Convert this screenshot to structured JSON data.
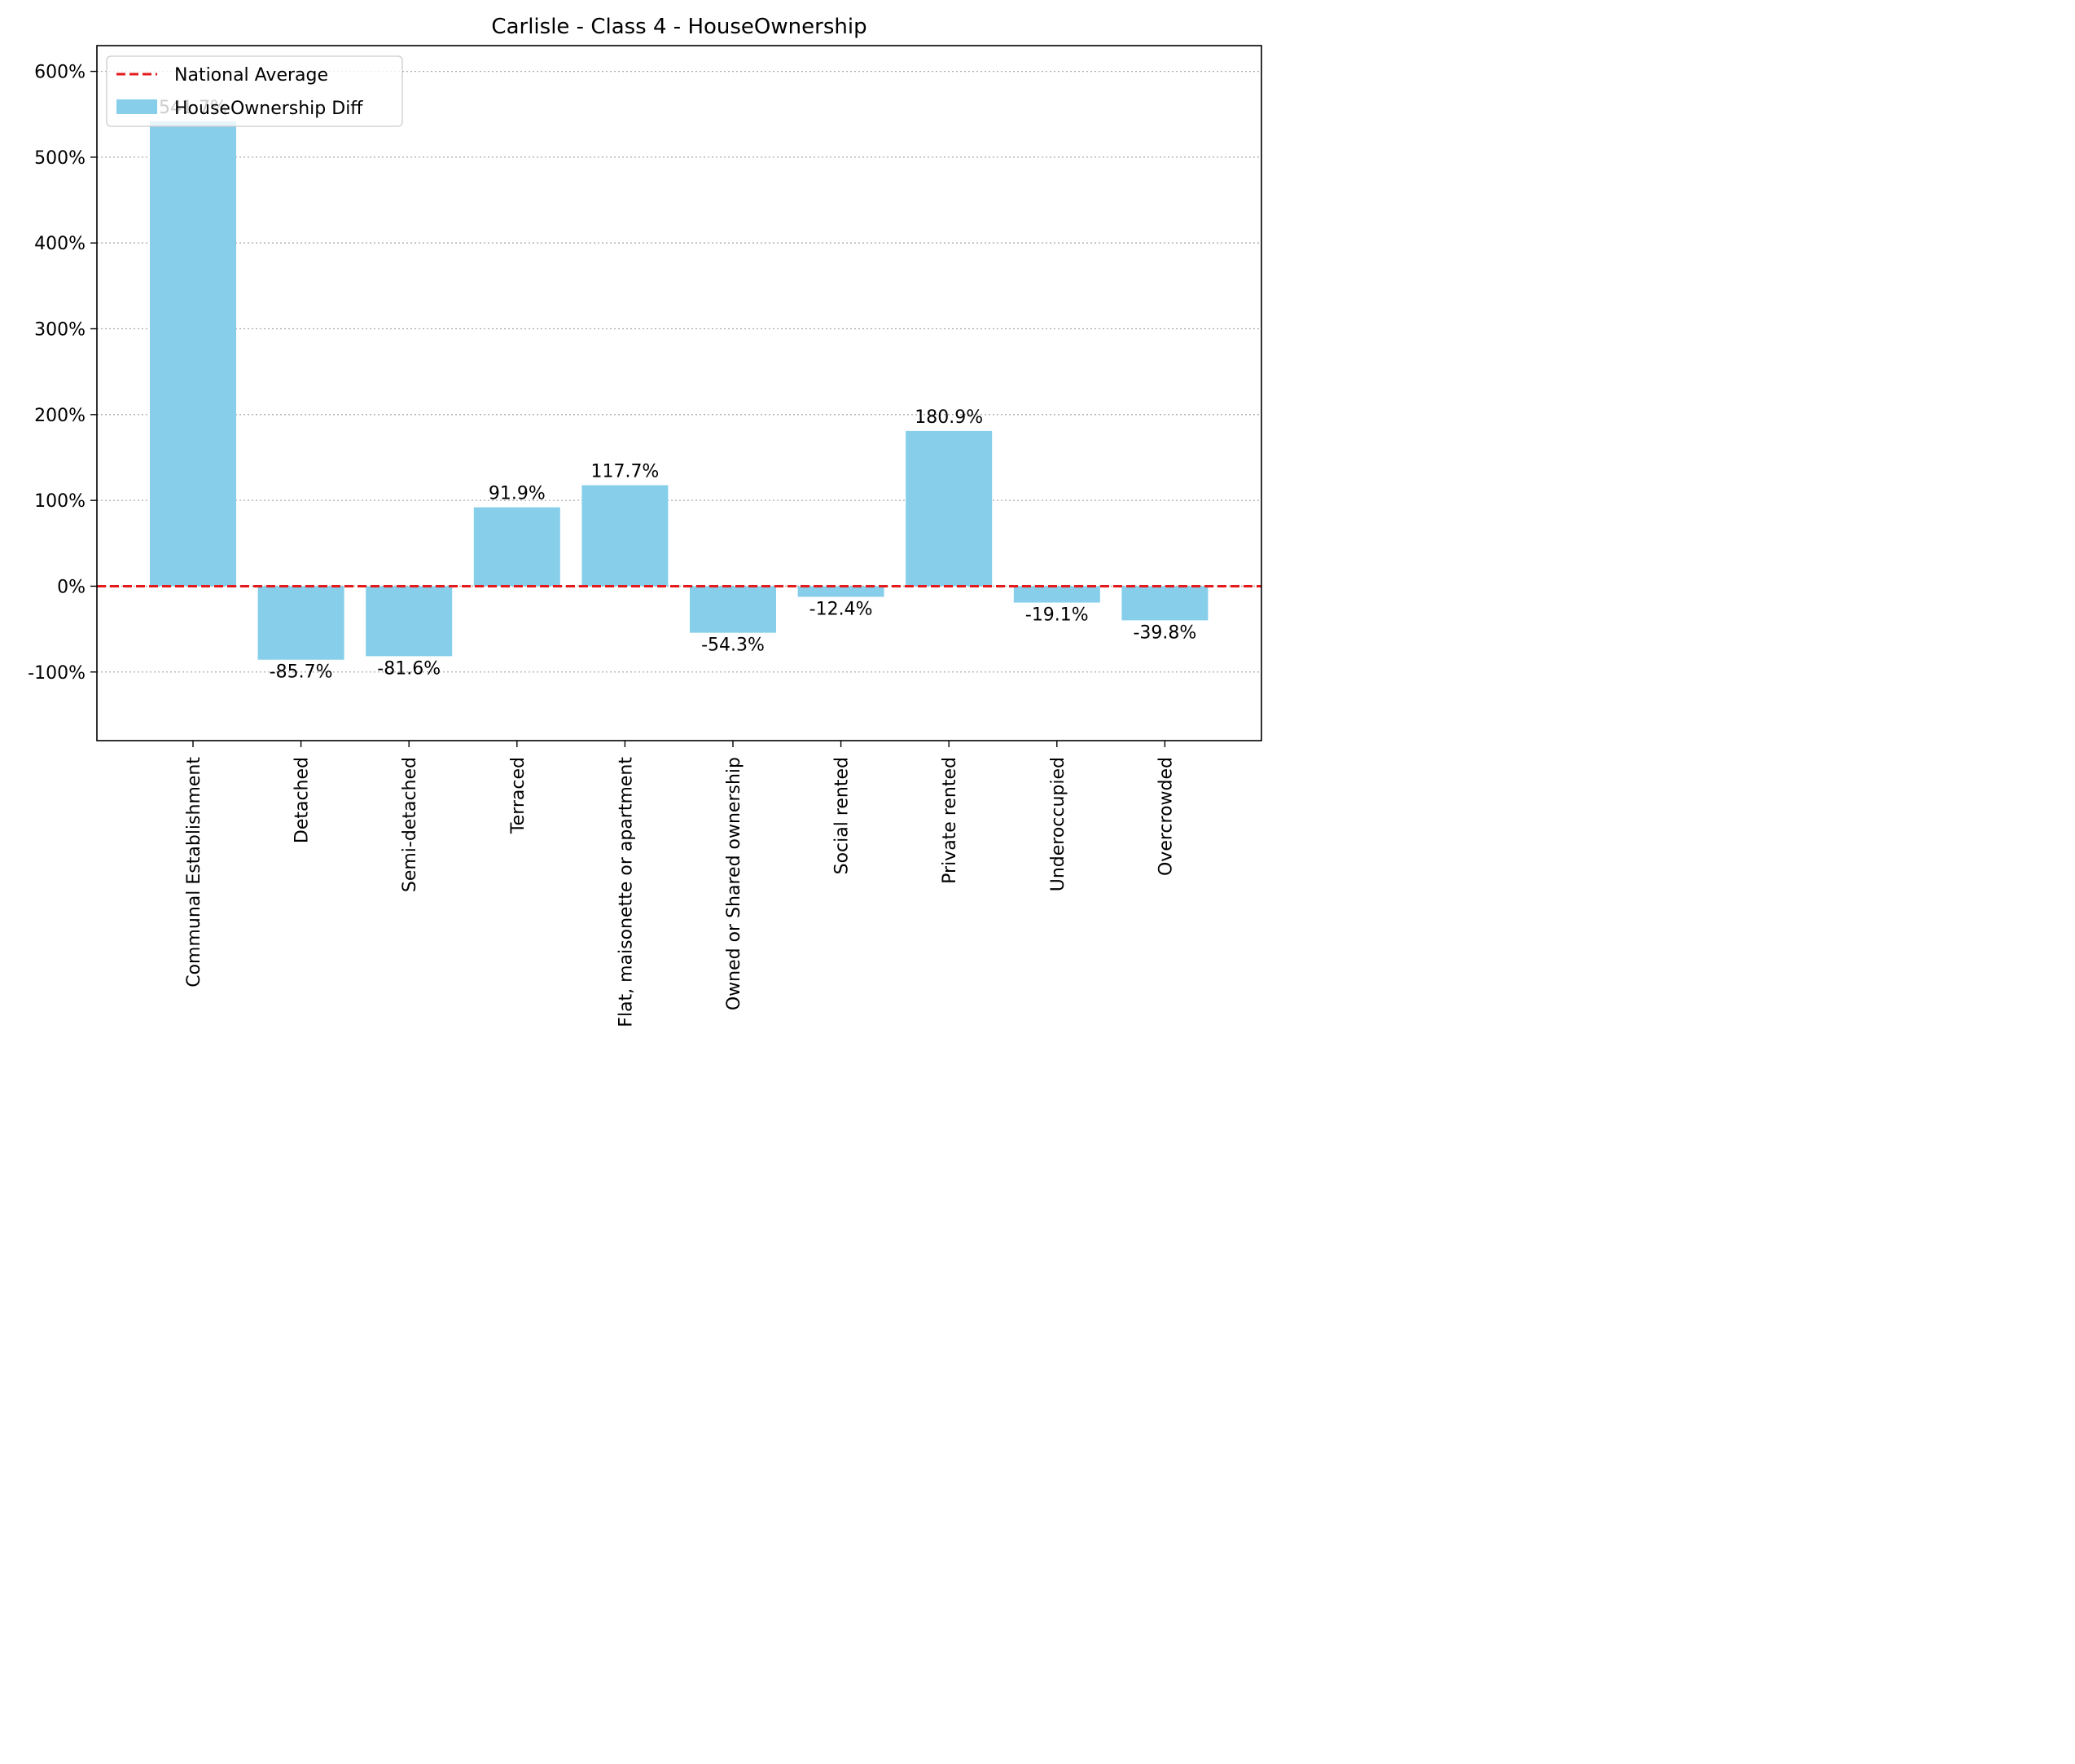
{
  "chart_data": {
    "type": "bar",
    "title": "Carlisle - Class 4 - HouseOwnership",
    "xlabel": "",
    "ylabel": "",
    "categories": [
      "Communal Establishment",
      "Detached",
      "Semi-detached",
      "Terraced",
      "Flat, maisonette or apartment",
      "Owned or Shared ownership",
      "Social rented",
      "Private rented",
      "Underoccupied",
      "Overcrowded"
    ],
    "series": [
      {
        "name": "HouseOwnership Diff",
        "values": [
          541.7,
          -85.7,
          -81.6,
          91.9,
          117.7,
          -54.3,
          -12.4,
          180.9,
          -19.1,
          -39.8
        ],
        "data_labels": [
          "541.7%",
          "-85.7%",
          "-81.6%",
          "91.9%",
          "117.7%",
          "-54.3%",
          "-12.4%",
          "180.9%",
          "-19.1%",
          "-39.8%"
        ],
        "color": "#87ceeb"
      }
    ],
    "reference_line": {
      "name": "National Average",
      "value": 0,
      "color": "#e41a1c",
      "style": "dashed"
    },
    "ylim": [
      -180,
      630
    ],
    "yticks": [
      -100,
      0,
      100,
      200,
      300,
      400,
      500,
      600
    ],
    "ytick_labels": [
      "-100%",
      "0%",
      "100%",
      "200%",
      "300%",
      "400%",
      "500%",
      "600%"
    ],
    "grid": {
      "y": true,
      "x": false,
      "style": "dotted",
      "color": "#aaaaaa"
    },
    "legend": {
      "position": "top-left",
      "entries": [
        "National Average",
        "HouseOwnership Diff"
      ]
    }
  }
}
